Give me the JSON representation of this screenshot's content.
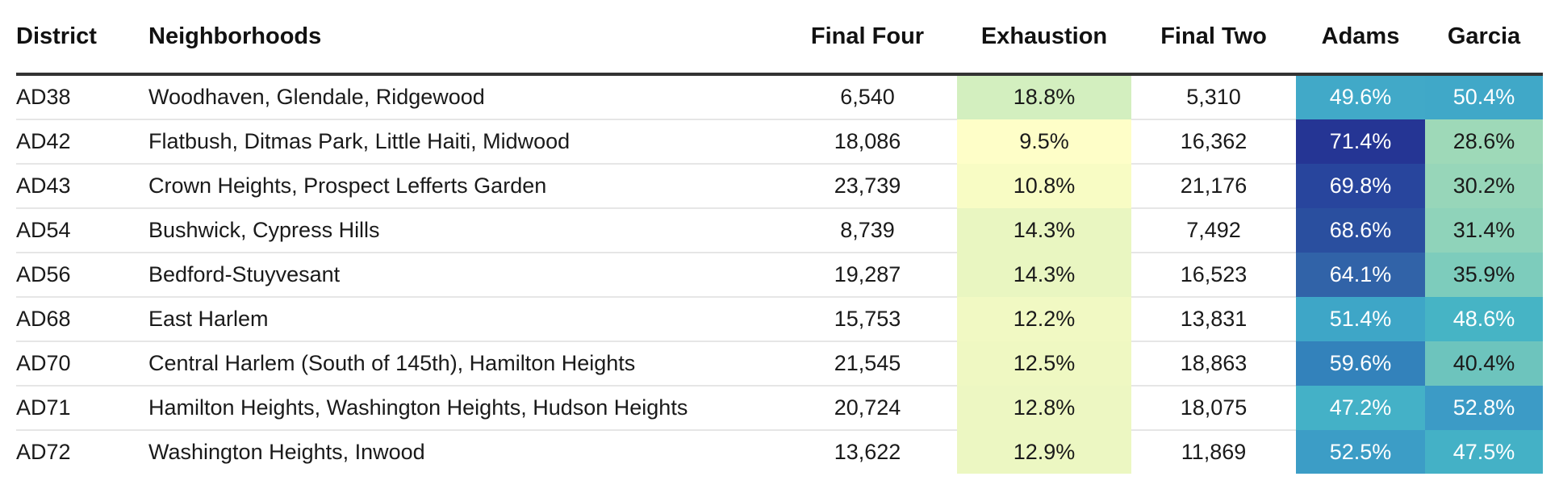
{
  "chart_data": {
    "type": "table",
    "columns": [
      "District",
      "Neighborhoods",
      "Final Four",
      "Exhaustion",
      "Final Two",
      "Adams",
      "Garcia"
    ],
    "rows": [
      {
        "district": "AD38",
        "neighborhoods": "Woodhaven, Glendale, Ridgewood",
        "final_four": "6,540",
        "exhaustion": "18.8%",
        "final_two": "5,310",
        "adams": "49.6%",
        "garcia": "50.4%"
      },
      {
        "district": "AD42",
        "neighborhoods": "Flatbush, Ditmas Park, Little Haiti, Midwood",
        "final_four": "18,086",
        "exhaustion": "9.5%",
        "final_two": "16,362",
        "adams": "71.4%",
        "garcia": "28.6%"
      },
      {
        "district": "AD43",
        "neighborhoods": "Crown Heights, Prospect Lefferts Garden",
        "final_four": "23,739",
        "exhaustion": "10.8%",
        "final_two": "21,176",
        "adams": "69.8%",
        "garcia": "30.2%"
      },
      {
        "district": "AD54",
        "neighborhoods": "Bushwick, Cypress Hills",
        "final_four": "8,739",
        "exhaustion": "14.3%",
        "final_two": "7,492",
        "adams": "68.6%",
        "garcia": "31.4%"
      },
      {
        "district": "AD56",
        "neighborhoods": "Bedford-Stuyvesant",
        "final_four": "19,287",
        "exhaustion": "14.3%",
        "final_two": "16,523",
        "adams": "64.1%",
        "garcia": "35.9%"
      },
      {
        "district": "AD68",
        "neighborhoods": "East Harlem",
        "final_four": "15,753",
        "exhaustion": "12.2%",
        "final_two": "13,831",
        "adams": "51.4%",
        "garcia": "48.6%"
      },
      {
        "district": "AD70",
        "neighborhoods": "Central Harlem (South of 145th), Hamilton Heights",
        "final_four": "21,545",
        "exhaustion": "12.5%",
        "final_two": "18,863",
        "adams": "59.6%",
        "garcia": "40.4%"
      },
      {
        "district": "AD71",
        "neighborhoods": "Hamilton Heights, Washington Heights, Hudson Heights",
        "final_four": "20,724",
        "exhaustion": "12.8%",
        "final_two": "18,075",
        "adams": "47.2%",
        "garcia": "52.8%"
      },
      {
        "district": "AD72",
        "neighborhoods": "Washington Heights, Inwood",
        "final_four": "13,622",
        "exhaustion": "12.9%",
        "final_two": "11,869",
        "adams": "52.5%",
        "garcia": "47.5%"
      }
    ],
    "heatmap_columns": [
      "Exhaustion",
      "Adams",
      "Garcia"
    ],
    "colors": {
      "header_rule": "#333333",
      "row_rule": "#e6e6e6",
      "exhaustion": [
        "#d3efbf",
        "#fefec8",
        "#f8fcc4",
        "#e9f6c1",
        "#e9f6c1",
        "#f1f9c3",
        "#eff8c2",
        "#edf7c2",
        "#ecf7c2"
      ],
      "adams": [
        "#41a9c8",
        "#253594",
        "#28459d",
        "#2a4f9f",
        "#3163a8",
        "#3ea6c7",
        "#3382bb",
        "#44b1c7",
        "#3c9dc6"
      ],
      "garcia": [
        "#40a8c8",
        "#9ed9b8",
        "#97d6b9",
        "#8fd3ba",
        "#7dccbc",
        "#46b4c5",
        "#6dc4bd",
        "#3c9bc6",
        "#44b1c6"
      ],
      "light_text": "#ffffff",
      "dark_text": "#1a1a1a"
    }
  }
}
